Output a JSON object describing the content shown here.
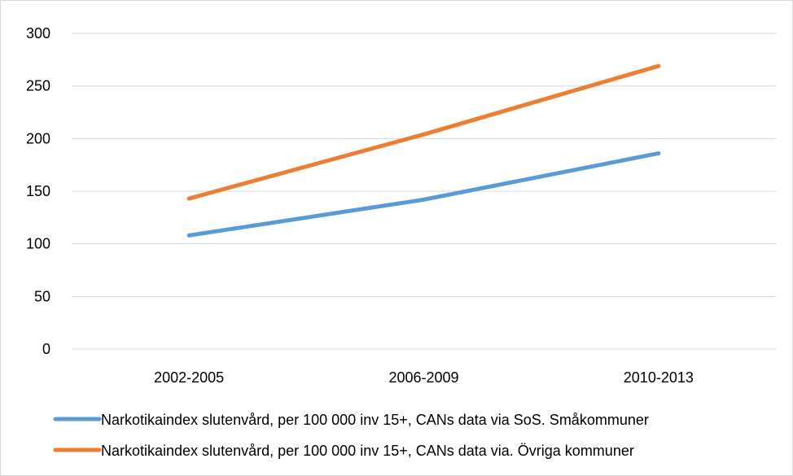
{
  "chart_data": {
    "type": "line",
    "title": "",
    "xlabel": "",
    "ylabel": "",
    "categories": [
      "2002-2005",
      "2006-2009",
      "2010-2013"
    ],
    "ylim": [
      0,
      300
    ],
    "yticks": [
      0,
      50,
      100,
      150,
      200,
      250,
      300
    ],
    "grid": true,
    "legend_position": "bottom",
    "series": [
      {
        "name": "Narkotikaindex slutenvård, per 100 000 inv 15+, CANs data via SoS. Småkommuner",
        "values": [
          108,
          142,
          186
        ],
        "color": "#5b9bd5"
      },
      {
        "name": "Narkotikaindex slutenvård, per 100 000 inv 15+, CANs data via. Övriga kommuner",
        "values": [
          143,
          204,
          269
        ],
        "color": "#ed7d31"
      }
    ]
  }
}
